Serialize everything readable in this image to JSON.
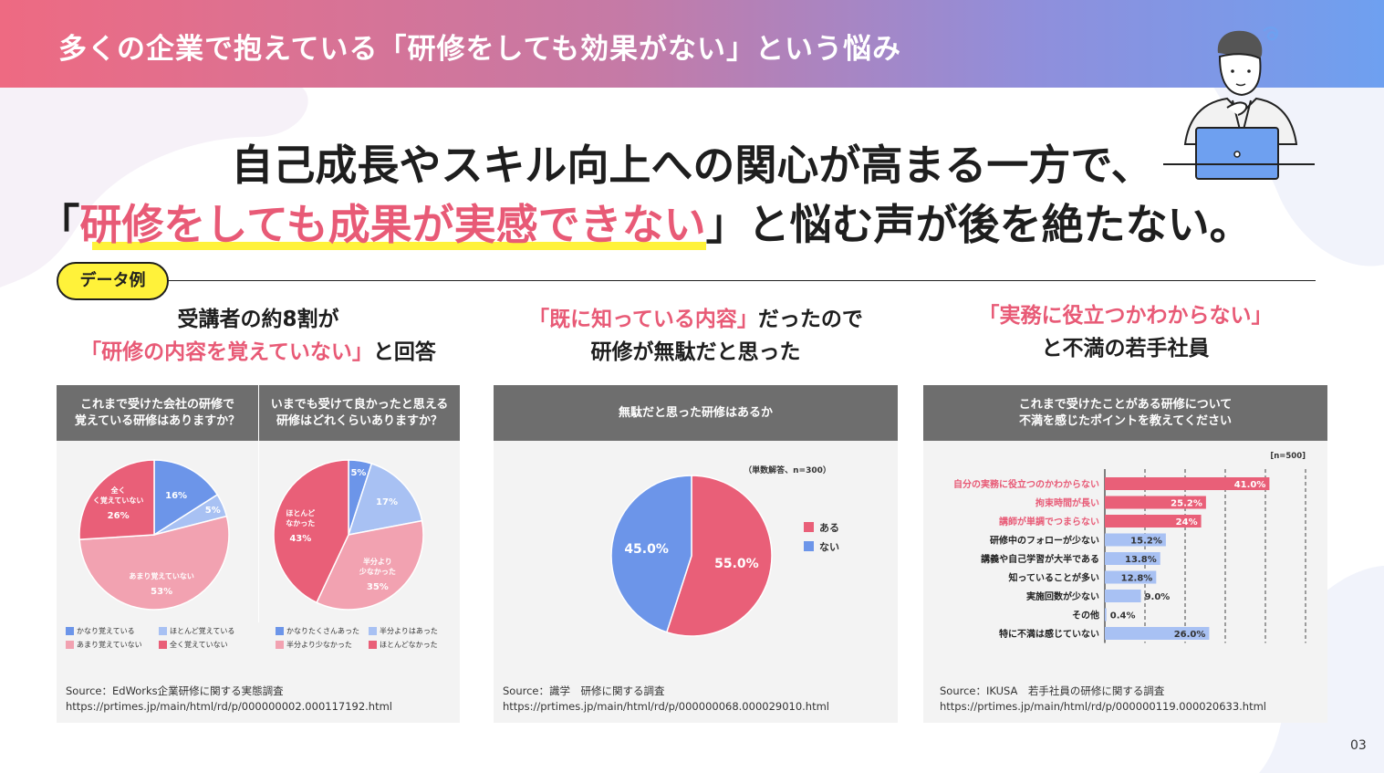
{
  "header": {
    "title": "多くの企業で抱えている「研修をしても効果がない」という悩み"
  },
  "headline": {
    "line1": "自己成長やスキル向上への関心が高まる一方で、",
    "line2_open": "「",
    "line2_highlight": "研修をしても成果が実感できない",
    "line2_rest": "」と悩む声が後を絶たない。"
  },
  "data_pill": "データ例",
  "columns": [
    {
      "line1": "受講者の約8割が",
      "line2_highlight": "「研修の内容を覚えていない」",
      "line2_rest": "と回答"
    },
    {
      "line1_highlight": "「既に知っている内容」",
      "line1_rest": "だったので",
      "line2": "研修が無駄だと思った"
    },
    {
      "line1_highlight": "「実務に役立つかわからない」",
      "line2": "と不満の若手社員"
    }
  ],
  "colors": {
    "blue": "#6c95e9",
    "light_blue": "#a8c1f3",
    "light_pink": "#f2a2b1",
    "pink": "#e95f78",
    "gray_head": "#6e6e6e",
    "yellow": "#fff23a"
  },
  "panel1": {
    "q1": [
      "これまで受けた会社の研修で",
      "覚えている研修はありますか？"
    ],
    "q2": [
      "いまでも受けて良かったと思える",
      "研修はどれくらいありますか？"
    ],
    "legend1": [
      "かなり覚えている",
      "ほとんど覚えている",
      "あまり覚えていない",
      "全く覚えていない"
    ],
    "legend2": [
      "かなりたくさんあった",
      "半分よりはあった",
      "半分より少なかった",
      "ほとんどなかった"
    ],
    "source": [
      "Source：EdWorks企業研修に関する実態調査",
      "https://prtimes.jp/main/html/rd/p/000000002.000117192.html"
    ]
  },
  "panel2": {
    "title": "無駄だと思った研修はあるか",
    "note": "（単数解答、n=300）",
    "legend": [
      "ある",
      "ない"
    ],
    "source": [
      "Source：識学　研修に関する調査",
      "https://prtimes.jp/main/html/rd/p/000000068.000029010.html"
    ]
  },
  "panel3": {
    "title": [
      "これまで受けたことがある研修について",
      "不満を感じたポイントを教えてください"
    ],
    "n_label": "[n=500]",
    "source": [
      "Source：IKUSA　若手社員の研修に関する調査",
      "https://prtimes.jp/main/html/rd/p/000000119.000020633.html"
    ]
  },
  "chart_data": [
    {
      "type": "pie",
      "title": "これまで受けた会社の研修で覚えている研修はありますか？",
      "labels": [
        "かなり覚えている",
        "ほとんど覚えている",
        "あまり覚えていない",
        "全く覚えていない"
      ],
      "slice_labels": [
        "",
        "",
        "あまり覚えていない",
        "全く覚えていない"
      ],
      "values": [
        16,
        5,
        53,
        26
      ],
      "value_labels": [
        "16%",
        "5%",
        "53%",
        "26%"
      ],
      "colors": [
        "#6c95e9",
        "#a8c1f3",
        "#f2a2b1",
        "#e95f78"
      ]
    },
    {
      "type": "pie",
      "title": "いまでも受けて良かったと思える研修はどれくらいありますか？",
      "labels": [
        "かなりたくさんあった",
        "半分よりはあった",
        "半分より少なかった",
        "ほとんどなかった"
      ],
      "slice_labels": [
        "",
        "",
        "半分より少なかった",
        "ほとんどなかった"
      ],
      "values": [
        5,
        17,
        35,
        43
      ],
      "value_labels": [
        "5%",
        "17%",
        "35%",
        "43%"
      ],
      "colors": [
        "#6c95e9",
        "#a8c1f3",
        "#f2a2b1",
        "#e95f78"
      ]
    },
    {
      "type": "pie",
      "title": "無駄だと思った研修はあるか",
      "labels": [
        "ある",
        "ない"
      ],
      "values": [
        55.0,
        45.0
      ],
      "value_labels": [
        "55.0%",
        "45.0%"
      ],
      "colors": [
        "#e95f78",
        "#6c95e9"
      ]
    },
    {
      "type": "bar",
      "orientation": "horizontal",
      "title": "これまで受けたことがある研修について不満を感じたポイントを教えてください",
      "categories": [
        "自分の実務に役立つのかわからない",
        "拘束時間が長い",
        "講師が単調でつまらない",
        "研修中のフォローが少ない",
        "講義や自己学習が大半である",
        "知っていることが多い",
        "実施回数が少ない",
        "その他",
        "特に不満は感じていない"
      ],
      "values": [
        41.0,
        25.2,
        24,
        15.2,
        13.8,
        12.8,
        9.0,
        0.4,
        26.0
      ],
      "value_labels": [
        "41.0%",
        "25.2%",
        "24%",
        "15.2%",
        "13.8%",
        "12.8%",
        "9.0%",
        "0.4%",
        "26.0%"
      ],
      "highlight": [
        true,
        true,
        true,
        false,
        false,
        false,
        false,
        false,
        false
      ],
      "xlim": [
        0,
        50
      ],
      "xticks": [
        "0%",
        "10%",
        "20%",
        "30%",
        "40%",
        "50%"
      ],
      "xtick_values": [
        0,
        10,
        20,
        30,
        40,
        50
      ]
    }
  ],
  "page_number": "03"
}
